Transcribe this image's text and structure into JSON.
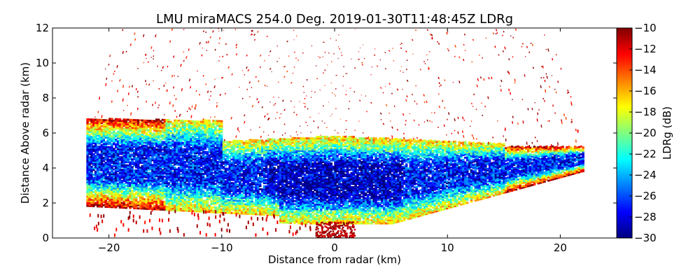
{
  "chart_data": {
    "type": "heatmap",
    "title": "LMU miraMACS 254.0 Deg. 2019-01-30T11:48:45Z  LDRg",
    "xlabel": "Distance from radar (km)",
    "ylabel": "Distance Above radar  (km)",
    "xlim": [
      -25,
      25
    ],
    "ylim": [
      0,
      12
    ],
    "xticks": [
      -20,
      -10,
      0,
      10,
      20
    ],
    "xtick_labels": [
      "−20",
      "−10",
      "0",
      "10",
      "20"
    ],
    "yticks": [
      0,
      2,
      4,
      6,
      8,
      10,
      12
    ],
    "ytick_labels": [
      "0",
      "2",
      "4",
      "6",
      "8",
      "10",
      "12"
    ],
    "colorbar": {
      "label": "LDRg (dB)",
      "range": [
        -30,
        -10
      ],
      "ticks": [
        -10,
        -12,
        -14,
        -16,
        -18,
        -20,
        -22,
        -24,
        -26,
        -28,
        -30
      ],
      "tick_labels": [
        "−10",
        "−12",
        "−14",
        "−16",
        "−18",
        "−20",
        "−22",
        "−24",
        "−26",
        "−28",
        "−30"
      ],
      "colormap": [
        "#00007f",
        "#0000ff",
        "#007fff",
        "#00ffff",
        "#7fff7f",
        "#ffff00",
        "#ff7f00",
        "#ff0000",
        "#7f0000"
      ]
    },
    "scan_extent": {
      "x_range_km": [
        -22,
        22
      ],
      "left_edge_height_km": [
        1.8,
        6.8
      ],
      "right_edge_height_km": [
        3.8,
        5.2
      ],
      "dominant_ldr_db": -27,
      "edge_ldr_db": -12
    }
  }
}
